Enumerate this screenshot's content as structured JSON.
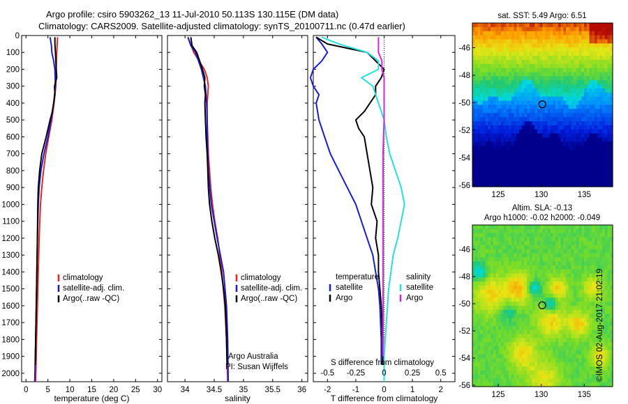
{
  "titles": {
    "line1": "Argo profile: csiro 5903262_13 11-Jul-2010 50.113S 130.115E (DM data)",
    "line2": "Climatology: CARS2009. Satellite-adjusted climatology: synTS_20100711.nc (0.47d earlier)"
  },
  "watermark": "©IMOS 02-Aug-2017 21:02:19",
  "colors": {
    "climatology": "#ee2222",
    "satellite": "#1a1add",
    "argo": "#000000",
    "sat_salinity": "#22e0e0",
    "argo_salinity": "#e020e0"
  },
  "chart_data": [
    {
      "type": "line",
      "xlabel": "temperature (deg C)",
      "ylim": [
        2050,
        0
      ],
      "xlim": [
        -1,
        31
      ],
      "xticks": [
        "0",
        "5",
        "10",
        "15",
        "20",
        "25",
        "30"
      ],
      "yticks": [
        "0",
        "100",
        "200",
        "300",
        "400",
        "500",
        "600",
        "700",
        "800",
        "900",
        "1000",
        "1100",
        "1200",
        "1300",
        "1400",
        "1500",
        "1600",
        "1700",
        "1800",
        "1900",
        "2000"
      ],
      "legend": {
        "position": "lower-right",
        "entries": [
          "climatology",
          "satellite-adj. clim.",
          "Argo(..raw -QC)"
        ]
      },
      "series": [
        {
          "name": "climatology",
          "color": "#ee2222",
          "depth": [
            10,
            100,
            200,
            300,
            400,
            500,
            600,
            700,
            800,
            900,
            1000,
            1200,
            1500,
            1800,
            2050
          ],
          "values": [
            7.2,
            7.0,
            6.9,
            6.8,
            6.4,
            5.9,
            5.2,
            4.5,
            4.0,
            3.6,
            3.3,
            3.0,
            2.7,
            2.4,
            2.2
          ]
        },
        {
          "name": "satellite-adj. clim.",
          "color": "#1a1add",
          "depth": [
            10,
            60,
            100,
            150,
            200,
            300,
            400,
            500,
            600,
            700,
            800,
            900,
            1000,
            1200,
            1500,
            1800,
            2050
          ],
          "values": [
            5.5,
            5.8,
            5.9,
            6.3,
            6.6,
            6.7,
            6.3,
            5.7,
            5.0,
            4.1,
            3.4,
            3.0,
            2.8,
            2.6,
            2.4,
            2.2,
            2.0
          ]
        },
        {
          "name": "Argo(..raw -QC)",
          "color": "#000000",
          "depth": [
            10,
            50,
            100,
            150,
            200,
            250,
            300,
            350,
            400,
            450,
            500,
            600,
            700,
            800,
            900,
            1000,
            1200,
            1500,
            1800,
            1950
          ],
          "values": [
            6.6,
            6.6,
            6.7,
            6.8,
            6.9,
            7.0,
            6.5,
            6.6,
            6.3,
            6.0,
            5.5,
            4.6,
            3.6,
            3.1,
            2.8,
            2.7,
            2.6,
            2.4,
            2.2,
            2.1
          ]
        }
      ]
    },
    {
      "type": "line",
      "xlabel": "salinity",
      "ylim": [
        2050,
        0
      ],
      "xlim": [
        33.7,
        36.1
      ],
      "xticks": [
        "34",
        "34.5",
        "35",
        "35.5",
        "36"
      ],
      "legend": {
        "position": "lower-right",
        "entries": [
          "climatology",
          "satellite-adj. clim.",
          "Argo(..raw -QC)"
        ]
      },
      "annotation": [
        "Argo Australia",
        "PI: Susan Wijffels"
      ],
      "series": [
        {
          "name": "climatology",
          "color": "#ee2222",
          "depth": [
            10,
            100,
            200,
            250,
            300,
            400,
            500,
            600,
            700,
            800,
            900,
            1000,
            1100,
            1200,
            1400,
            1600,
            1800,
            2050
          ],
          "values": [
            34.05,
            34.15,
            34.33,
            34.38,
            34.4,
            34.38,
            34.38,
            34.39,
            34.4,
            34.42,
            34.44,
            34.47,
            34.51,
            34.56,
            34.63,
            34.68,
            34.71,
            34.73
          ]
        },
        {
          "name": "satellite-adj. clim.",
          "color": "#1a1add",
          "depth": [
            10,
            60,
            100,
            200,
            300,
            400,
            500,
            600,
            700,
            800,
            1000,
            1200,
            1400,
            1600,
            1800,
            2050
          ],
          "values": [
            34.05,
            34.1,
            34.18,
            34.28,
            34.35,
            34.37,
            34.38,
            34.38,
            34.39,
            34.4,
            34.45,
            34.55,
            34.66,
            34.71,
            34.73,
            34.74
          ]
        },
        {
          "name": "Argo(..raw -QC)",
          "color": "#000000",
          "depth": [
            10,
            60,
            100,
            150,
            200,
            250,
            300,
            350,
            400,
            500,
            600,
            700,
            800,
            900,
            1000,
            1100,
            1200,
            1300,
            1400,
            1500,
            1600,
            1700,
            1800,
            1950
          ],
          "values": [
            34.1,
            34.12,
            34.2,
            34.25,
            34.3,
            34.34,
            34.33,
            34.35,
            34.34,
            34.35,
            34.36,
            34.38,
            34.39,
            34.4,
            34.42,
            34.46,
            34.51,
            34.57,
            34.62,
            34.66,
            34.69,
            34.7,
            34.71,
            34.72
          ]
        }
      ]
    },
    {
      "type": "line",
      "xlabel": "T difference from climatology",
      "top_label": "S difference from climatology",
      "ylim": [
        2050,
        0
      ],
      "xlim": [
        -2.5,
        2.5
      ],
      "xticks": [
        "-2",
        "-1",
        "0",
        "1",
        "2"
      ],
      "top_ticks": [
        "-0.5",
        "-0.25",
        "0",
        "0.25",
        "0.5"
      ],
      "legend": {
        "position": "lower",
        "groups": [
          {
            "header": "temperature",
            "entries": [
              "satellite",
              "Argo"
            ]
          },
          {
            "header": "salinity",
            "entries": [
              "satellite",
              "Argo"
            ]
          }
        ]
      },
      "series": [
        {
          "name": "satellite",
          "color": "#1a1add",
          "depth": [
            10,
            50,
            100,
            150,
            200,
            250,
            300,
            350,
            400,
            500,
            600,
            700,
            800,
            900,
            1000,
            1100,
            1200,
            1300,
            1400,
            1500,
            1600,
            1800,
            1950
          ],
          "values": [
            -2.4,
            -2.2,
            -2.0,
            -2.2,
            -2.5,
            -2.6,
            -2.5,
            -2.3,
            -2.4,
            -2.3,
            -2.1,
            -1.9,
            -1.6,
            -1.3,
            -1.0,
            -0.8,
            -0.6,
            -0.4,
            -0.3,
            -0.2,
            -0.15,
            -0.1,
            -0.1
          ]
        },
        {
          "name": "Argo",
          "color": "#000000",
          "depth": [
            10,
            50,
            100,
            150,
            200,
            250,
            300,
            350,
            400,
            450,
            500,
            550,
            600,
            700,
            800,
            900,
            1000,
            1100,
            1200,
            1300,
            1400,
            1500,
            1600,
            1800,
            1950
          ],
          "values": [
            -2.4,
            -2.0,
            -0.6,
            -0.3,
            0.0,
            -0.1,
            -0.3,
            -0.3,
            -0.5,
            -0.7,
            -1.0,
            -0.9,
            -0.7,
            -0.6,
            -0.5,
            -0.4,
            -0.45,
            -0.25,
            -0.3,
            -0.2,
            -0.2,
            -0.15,
            -0.1,
            -0.05,
            -0.05
          ]
        },
        {
          "name": "satellite (S)",
          "color": "#22e0e0",
          "depth": [
            10,
            50,
            100,
            150,
            200,
            250,
            300,
            400,
            500,
            600,
            700,
            800,
            900,
            1000,
            1100,
            1200,
            1300,
            1500,
            1700,
            1900,
            2050
          ],
          "values": [
            -0.55,
            -0.4,
            -0.15,
            -0.05,
            -0.05,
            -0.2,
            -0.1,
            -0.05,
            0.0,
            0.02,
            0.05,
            0.1,
            0.15,
            0.18,
            0.15,
            0.12,
            0.08,
            0.04,
            0.02,
            0.0,
            0.0
          ]
        },
        {
          "name": "Argo (S)",
          "color": "#e020e0",
          "depth": [
            10,
            100,
            150,
            200,
            250,
            300,
            400,
            500,
            700,
            900,
            1100,
            1300,
            1500,
            1700,
            1900
          ],
          "values": [
            -0.05,
            -0.05,
            -0.02,
            -0.02,
            0.0,
            0.0,
            0.0,
            0.0,
            -0.01,
            -0.01,
            -0.01,
            -0.01,
            -0.01,
            -0.01,
            -0.01
          ]
        }
      ]
    },
    {
      "type": "heatmap",
      "title": "sat. SST: 5.49 Argo: 6.51",
      "xticks": [
        "125",
        "130",
        "135"
      ],
      "yticks": [
        "-46",
        "-48",
        "-50",
        "-52",
        "-54",
        "-56"
      ],
      "xlim": [
        122,
        138.3
      ],
      "ylim": [
        -56.1,
        -44.2
      ],
      "marker": {
        "lon": 130.115,
        "lat": -50.113
      }
    },
    {
      "type": "heatmap",
      "title": [
        "Altim. SLA: -0.13",
        "Argo h1000: -0.02 h2000: -0.049"
      ],
      "xticks": [
        "125",
        "130",
        "135"
      ],
      "yticks": [
        "-46",
        "-48",
        "-50",
        "-52",
        "-54",
        "-56"
      ],
      "xlim": [
        122,
        138.3
      ],
      "ylim": [
        -56.1,
        -44.2
      ],
      "marker": {
        "lon": 130.115,
        "lat": -50.113
      }
    }
  ]
}
